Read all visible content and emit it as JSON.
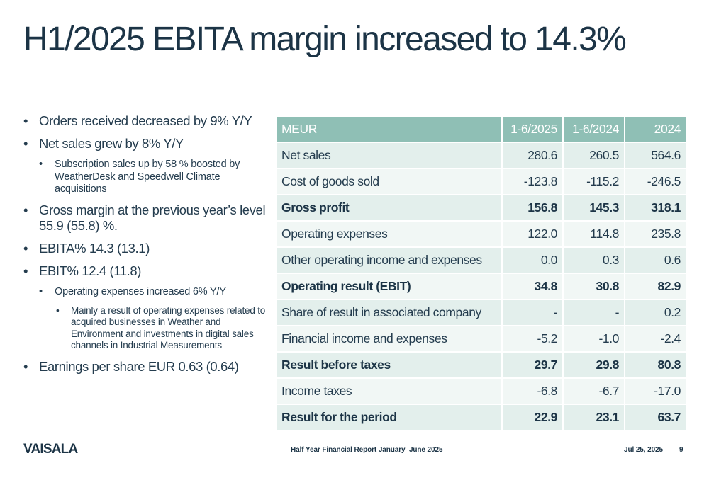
{
  "title": "H1/2025 EBITA margin increased to 14.3%",
  "bullets": {
    "b1": "Orders received decreased by 9% Y/Y",
    "b2": "Net sales grew by 8% Y/Y",
    "b2_1": "Subscription sales up by 58 % boosted by WeatherDesk and Speedwell Climate acquisitions",
    "b3": "Gross margin at the previous year’s level 55.9 (55.8) %.",
    "b4": "EBITA% 14.3 (13.1)",
    "b5": "EBIT% 12.4 (11.8)",
    "b5_1": "Operating expenses increased 6% Y/Y",
    "b5_1_1": "Mainly a result of operating expenses related to acquired businesses in Weather and Environment and investments in digital sales channels in Industrial Measurements",
    "b6": "Earnings per share EUR 0.63 (0.64)"
  },
  "table": {
    "headers": [
      "MEUR",
      "1-6/2025",
      "1-6/2024",
      "2024"
    ],
    "rows": [
      {
        "label": "Net sales",
        "v1": "280.6",
        "v2": "260.5",
        "v3": "564.6"
      },
      {
        "label": "Cost of goods sold",
        "v1": "-123.8",
        "v2": "-115.2",
        "v3": "-246.5"
      },
      {
        "label": "Gross profit",
        "v1": "156.8",
        "v2": "145.3",
        "v3": "318.1"
      },
      {
        "label": "Operating expenses",
        "v1": "122.0",
        "v2": "114.8",
        "v3": "235.8"
      },
      {
        "label": "Other operating income and expenses",
        "v1": "0.0",
        "v2": "0.3",
        "v3": "0.6"
      },
      {
        "label": "Operating result (EBIT)",
        "v1": "34.8",
        "v2": "30.8",
        "v3": "82.9"
      },
      {
        "label": "Share of result in associated company",
        "v1": "-",
        "v2": "-",
        "v3": "0.2"
      },
      {
        "label": "Financial income and expenses",
        "v1": "-5.2",
        "v2": "-1.0",
        "v3": "-2.4"
      },
      {
        "label": "Result before taxes",
        "v1": "29.7",
        "v2": "29.8",
        "v3": "80.8"
      },
      {
        "label": "Income taxes",
        "v1": "-6.8",
        "v2": "-6.7",
        "v3": "-17.0"
      },
      {
        "label": "Result for the period",
        "v1": "22.9",
        "v2": "23.1",
        "v3": "63.7"
      }
    ]
  },
  "footer": {
    "logo": "VAISALA",
    "report": "Half Year Financial Report January–June 2025",
    "date": "Jul 25, 2025",
    "page": "9"
  }
}
